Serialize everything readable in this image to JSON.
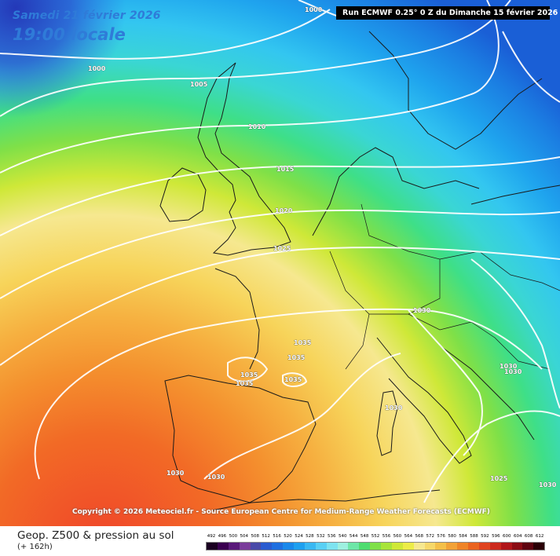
{
  "header": {
    "date": "Samedi 21 février 2026",
    "time": "19:00 locale",
    "run": "Run ECMWF 0.25° 0 Z du Dimanche 15 février 2026"
  },
  "credit": "Copyright © 2026 Meteociel.fr - Source European Centre for Medium-Range Weather Forecasts (ECMWF)",
  "legend": {
    "title": "Geop. Z500 & pression au sol",
    "subtitle": "(+ 162h)",
    "scale_values": [
      "492",
      "496",
      "500",
      "504",
      "508",
      "512",
      "516",
      "520",
      "524",
      "528",
      "532",
      "536",
      "540",
      "544",
      "548",
      "552",
      "556",
      "560",
      "564",
      "568",
      "572",
      "576",
      "580",
      "584",
      "588",
      "592",
      "596",
      "600",
      "604",
      "608",
      "612"
    ],
    "scale_colors": [
      "#1a0021",
      "#3a0050",
      "#5a1a7a",
      "#7a3d9a",
      "#4a4aa8",
      "#2a5bd0",
      "#1f6fe0",
      "#1a88ea",
      "#1fa0ef",
      "#3ab8f2",
      "#5ad0f4",
      "#7ee3f0",
      "#9ef0e0",
      "#6ee6a8",
      "#4fdc70",
      "#7fe048",
      "#a8e43a",
      "#cfe838",
      "#ecec48",
      "#f6e890",
      "#f6d86a",
      "#f4c04a",
      "#f2a238",
      "#ef8428",
      "#ea6420",
      "#e04420",
      "#cc2a1e",
      "#b0161a",
      "#8a0c14",
      "#5e0410",
      "#2a0006"
    ]
  },
  "isobar_labels": [
    "1000",
    "1000",
    "1005",
    "1010",
    "1015",
    "1020",
    "1025",
    "1030",
    "1035",
    "1035",
    "1035",
    "1035",
    "1035",
    "1030",
    "1030",
    "1030",
    "1025",
    "1030",
    "1030",
    "1030"
  ]
}
